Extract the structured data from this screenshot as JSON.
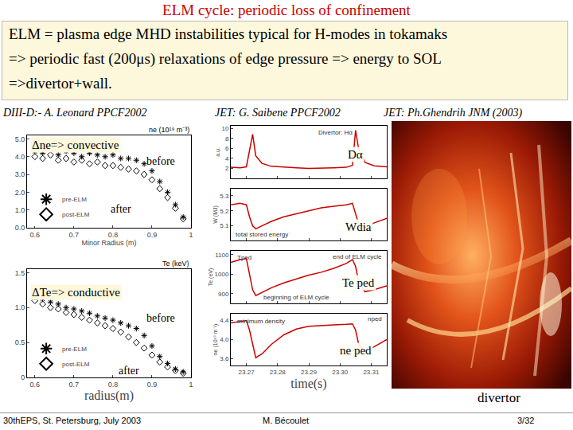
{
  "slide": {
    "title": "ELM cycle: periodic loss of confinement",
    "text_lines": [
      "ELM = plasma edge MHD instabilities typical for H-modes in tokamaks",
      "=> periodic fast (200μs) relaxations of edge pressure => energy to SOL",
      "=>divertor+wall."
    ],
    "references": [
      "DIII-D:- A. Leonard PPCF2002",
      "JET: G. Saibene PPCF2002",
      "JET: Ph.Ghendrih JNM (2003)"
    ],
    "photo_label": "divertor",
    "footer": {
      "left": "30thEPS, St. Petersburg, July 2003",
      "center": "M. Bécoulet",
      "right": "3/32"
    }
  },
  "chart_data": [
    {
      "type": "scatter",
      "xlabel": "Minor Radius (m)",
      "ylabel": "ne (10¹⁹ m⁻³)",
      "annotations": [
        "Δne=> convective",
        "before",
        "after"
      ],
      "x": [
        0.6,
        0.62,
        0.64,
        0.66,
        0.68,
        0.7,
        0.72,
        0.74,
        0.76,
        0.78,
        0.8,
        0.82,
        0.84,
        0.86,
        0.88,
        0.9,
        0.92,
        0.94,
        0.96,
        0.98
      ],
      "series": [
        {
          "name": "pre-ELM",
          "color": "#000000",
          "marker": "asterisk",
          "values": [
            4.3,
            4.2,
            4.4,
            4.1,
            4.3,
            4.2,
            4.0,
            4.2,
            4.1,
            4.0,
            4.1,
            3.9,
            3.9,
            3.8,
            3.6,
            3.2,
            2.6,
            2.0,
            1.3,
            0.6
          ]
        },
        {
          "name": "post-ELM",
          "color": "#000000",
          "marker": "diamond",
          "values": [
            4.0,
            3.9,
            4.1,
            3.8,
            3.9,
            3.7,
            3.8,
            3.6,
            3.7,
            3.5,
            3.5,
            3.4,
            3.3,
            3.2,
            3.0,
            2.7,
            2.2,
            1.7,
            1.1,
            0.5
          ]
        }
      ],
      "xlim": [
        0.58,
        1.0
      ],
      "xticks": [
        0.6,
        0.7,
        0.8,
        0.9,
        1
      ],
      "ylim": [
        0,
        5.2
      ],
      "yticks": [
        {
          "value": 0,
          "label": "0.0"
        },
        {
          "value": 1,
          "label": "1.0"
        },
        {
          "value": 2,
          "label": "2.0"
        },
        {
          "value": 3,
          "label": "3.0"
        },
        {
          "value": 4,
          "label": "4.0"
        },
        {
          "value": 5,
          "label": "5.0"
        }
      ],
      "legend": "lower left",
      "grid": false
    },
    {
      "type": "scatter",
      "xlabel": "radius(m)",
      "ylabel": "Te (keV)",
      "annotations": [
        "ΔTe=> conductive",
        "before",
        "after"
      ],
      "x": [
        0.6,
        0.62,
        0.64,
        0.66,
        0.68,
        0.7,
        0.72,
        0.74,
        0.76,
        0.78,
        0.8,
        0.82,
        0.84,
        0.86,
        0.88,
        0.9,
        0.92,
        0.94,
        0.96,
        0.98
      ],
      "series": [
        {
          "name": "pre-ELM",
          "color": "#000000",
          "marker": "asterisk",
          "values": [
            1.15,
            1.12,
            1.08,
            1.05,
            1.0,
            0.98,
            0.95,
            0.92,
            0.88,
            0.85,
            0.82,
            0.78,
            0.74,
            0.7,
            0.6,
            0.45,
            0.3,
            0.2,
            0.12,
            0.08
          ]
        },
        {
          "name": "post-ELM",
          "color": "#000000",
          "marker": "diamond",
          "values": [
            1.1,
            1.05,
            1.0,
            0.98,
            0.93,
            0.9,
            0.86,
            0.82,
            0.78,
            0.74,
            0.7,
            0.65,
            0.58,
            0.5,
            0.42,
            0.32,
            0.22,
            0.15,
            0.1,
            0.06
          ]
        }
      ],
      "xlim": [
        0.58,
        1.0
      ],
      "xticks": [
        0.6,
        0.7,
        0.8,
        0.9,
        1
      ],
      "ylim": [
        0,
        1.55
      ],
      "yticks": [
        0,
        0.5,
        {
          "value": 1,
          "label": "1.0"
        },
        1.5
      ],
      "legend": "lower left",
      "grid": false
    },
    {
      "type": "line",
      "ylabel": "a.u.",
      "annotations": [
        "Divertor: Hα",
        "Dα"
      ],
      "x": [
        23.265,
        23.268,
        23.27,
        23.271,
        23.272,
        23.273,
        23.275,
        23.278,
        23.282,
        23.286,
        23.29,
        23.294,
        23.298,
        23.302,
        23.304,
        23.305,
        23.306,
        23.308,
        23.311,
        23.315
      ],
      "series": [
        {
          "name": "Dα",
          "color": "#cc0000",
          "values": [
            2.2,
            2.1,
            2.3,
            5.5,
            8.8,
            4.5,
            3.0,
            2.4,
            2.2,
            2.1,
            2.0,
            2.0,
            2.1,
            2.2,
            2.6,
            9.6,
            5.8,
            3.2,
            2.5,
            2.3
          ]
        }
      ],
      "xlim": [
        23.265,
        23.315
      ],
      "xticks": [
        23.27,
        23.28,
        23.29,
        {
          "value": 23.3,
          "label": "23.30"
        },
        23.31
      ],
      "ylim": [
        0,
        10.5
      ],
      "yticks": [
        2,
        4,
        6,
        8,
        10
      ],
      "tick_labels": "y",
      "grid": false
    },
    {
      "type": "line",
      "ylabel": "W (MJ)",
      "annotations": [
        "total stored energy",
        "Wdia"
      ],
      "x": [
        23.265,
        23.268,
        23.27,
        23.271,
        23.272,
        23.273,
        23.275,
        23.278,
        23.282,
        23.286,
        23.29,
        23.294,
        23.298,
        23.302,
        23.304,
        23.305,
        23.306,
        23.308,
        23.311,
        23.315
      ],
      "series": [
        {
          "name": "Wdia",
          "color": "#cc0000",
          "values": [
            5.24,
            5.25,
            5.24,
            5.16,
            5.1,
            5.08,
            5.1,
            5.13,
            5.16,
            5.18,
            5.2,
            5.22,
            5.23,
            5.24,
            5.25,
            5.18,
            5.11,
            5.09,
            5.12,
            5.15
          ]
        }
      ],
      "xlim": [
        23.265,
        23.315
      ],
      "xticks": [
        23.27,
        23.28,
        23.29,
        {
          "value": 23.3,
          "label": "23.30"
        },
        23.31
      ],
      "ylim": [
        5.0,
        5.35
      ],
      "yticks": [
        5.1,
        5.2,
        5.3
      ],
      "tick_labels": "y",
      "grid": false
    },
    {
      "type": "line",
      "ylabel": "Te (eV)",
      "annotations": [
        "Tped",
        "end of ELM cycle",
        "beginning of ELM cycle",
        "Te ped"
      ],
      "x": [
        23.265,
        23.268,
        23.27,
        23.271,
        23.272,
        23.273,
        23.275,
        23.278,
        23.282,
        23.286,
        23.29,
        23.294,
        23.298,
        23.302,
        23.304,
        23.305,
        23.306,
        23.308,
        23.311,
        23.315
      ],
      "series": [
        {
          "name": "Te ped",
          "color": "#cc0000",
          "values": [
            1060,
            1075,
            1080,
            1000,
            920,
            890,
            905,
            930,
            955,
            975,
            995,
            1010,
            1030,
            1055,
            1075,
            1040,
            960,
            910,
            920,
            940
          ]
        }
      ],
      "xlim": [
        23.265,
        23.315
      ],
      "xticks": [
        23.27,
        23.28,
        23.29,
        {
          "value": 23.3,
          "label": "23.30"
        },
        23.31
      ],
      "ylim": [
        850,
        1120
      ],
      "yticks": [
        900,
        1000,
        1100
      ],
      "tick_labels": "y",
      "grid": false
    },
    {
      "type": "line",
      "xlabel": "time(s)",
      "ylabel": "ne (10¹⁹ m⁻³)",
      "annotations": [
        "minimum density",
        "nped",
        "ne ped"
      ],
      "x": [
        23.265,
        23.268,
        23.27,
        23.271,
        23.272,
        23.273,
        23.275,
        23.278,
        23.282,
        23.286,
        23.29,
        23.294,
        23.298,
        23.302,
        23.304,
        23.305,
        23.306,
        23.308,
        23.311,
        23.315
      ],
      "series": [
        {
          "name": "ne ped",
          "color": "#cc0000",
          "values": [
            4.35,
            4.38,
            4.4,
            4.2,
            3.9,
            3.62,
            3.7,
            3.9,
            4.1,
            4.22,
            4.28,
            4.3,
            4.31,
            4.32,
            4.33,
            4.2,
            3.9,
            3.75,
            3.85,
            4.0
          ]
        }
      ],
      "xlim": [
        23.265,
        23.315
      ],
      "xticks": [
        23.27,
        23.28,
        23.29,
        {
          "value": 23.3,
          "label": "23.30"
        },
        23.31
      ],
      "ylim": [
        3.45,
        4.55
      ],
      "yticks": [
        3.6,
        {
          "value": 4,
          "label": "4.0"
        },
        4.4
      ],
      "grid": false
    }
  ]
}
